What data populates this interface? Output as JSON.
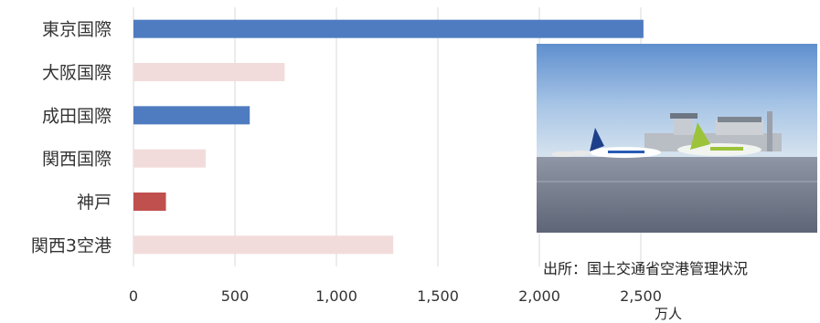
{
  "chart_data": {
    "type": "bar",
    "orientation": "horizontal",
    "categories": [
      "東京国際",
      "大阪国際",
      "成田国際",
      "関西国際",
      "神戸",
      "関西3空港"
    ],
    "values": [
      2513,
      745,
      573,
      356,
      160,
      1280
    ],
    "bar_colors": [
      "#4f7cc0",
      "#f2dcdb",
      "#4f7cc0",
      "#f2dcdb",
      "#c0504d",
      "#f2dcdb"
    ],
    "xlim": [
      0,
      3000
    ],
    "xticks": [
      0,
      500,
      1000,
      1500,
      2000,
      2500
    ],
    "xtick_labels": [
      "0",
      "500",
      "1,000",
      "1,500",
      "2,000",
      "2,500"
    ],
    "xlabel": "万人",
    "grid": true
  },
  "source_note": "出所：国土交通省空港管理状況"
}
